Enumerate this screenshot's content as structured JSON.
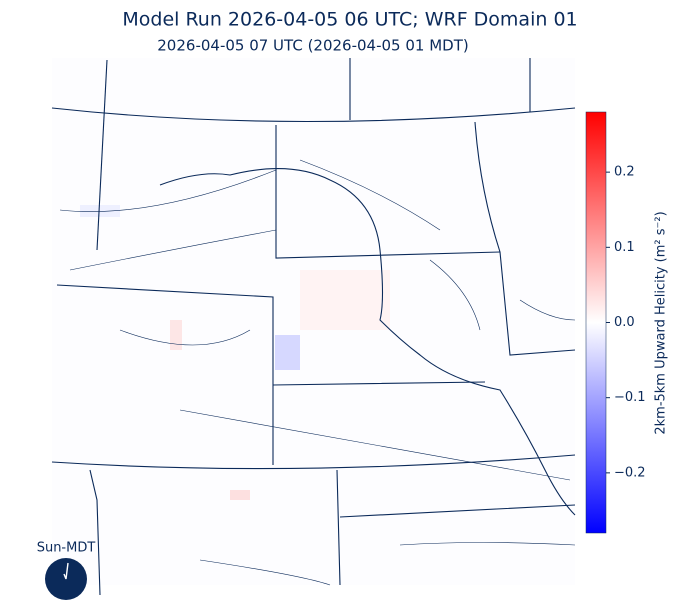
{
  "title": "Model Run 2026-04-05 06 UTC; WRF Domain 01",
  "subtitle": "2026-04-05 07 UTC  (2026-04-05 01 MDT)",
  "colorbar": {
    "label": "2km-5km Upward Helicity (m² s⁻²)",
    "lim": [
      -0.28,
      0.28
    ],
    "colors": [
      "#0000ff",
      "#ffffff",
      "#ff0000"
    ],
    "ticks": [
      {
        "value": -0.2,
        "label": "−0.2"
      },
      {
        "value": -0.1,
        "label": "−0.1"
      },
      {
        "value": 0,
        "label": "0.0"
      },
      0.1,
      0.2
    ]
  },
  "clock": {
    "label": "Sun-MDT"
  }
}
